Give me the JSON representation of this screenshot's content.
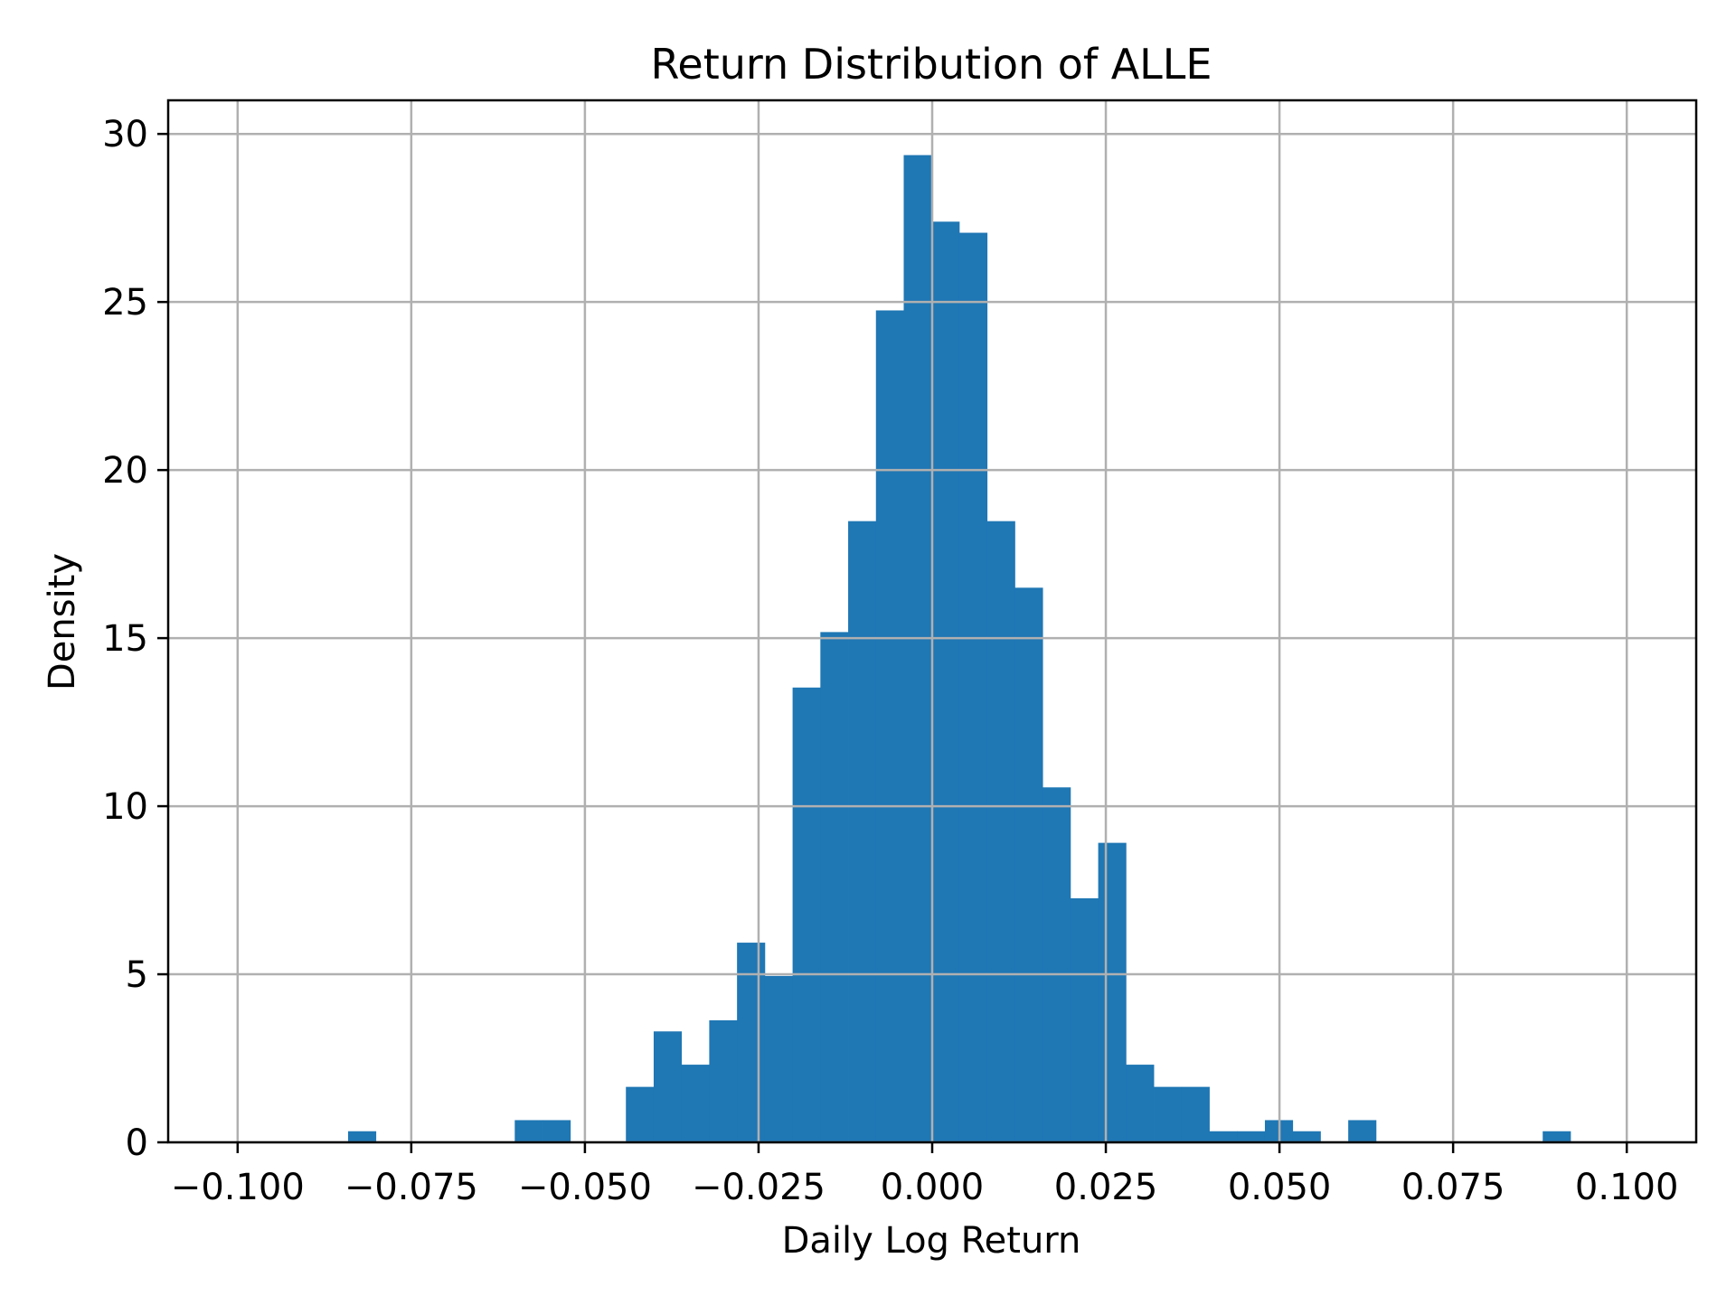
{
  "chart_data": {
    "type": "bar",
    "subtype": "histogram",
    "title": "Return Distribution of ALLE",
    "xlabel": "Daily Log Return",
    "ylabel": "Density",
    "xlim": [
      -0.11,
      0.11
    ],
    "ylim": [
      0,
      31
    ],
    "grid": true,
    "legend": null,
    "bar_color": "#1f77b4",
    "grid_color": "#b0b0b0",
    "x_ticks": [
      -0.1,
      -0.075,
      -0.05,
      -0.025,
      0.0,
      0.025,
      0.05,
      0.075,
      0.1
    ],
    "x_tick_labels": [
      "−0.100",
      "−0.075",
      "−0.050",
      "−0.025",
      "0.000",
      "0.025",
      "0.050",
      "0.075",
      "0.100"
    ],
    "y_ticks": [
      0,
      5,
      10,
      15,
      20,
      25,
      30
    ],
    "y_tick_labels": [
      "0",
      "5",
      "10",
      "15",
      "20",
      "25",
      "30"
    ],
    "bin_start": -0.0841,
    "bin_width": 0.004,
    "values": [
      0.33,
      0,
      0,
      0,
      0,
      0,
      0.66,
      0.66,
      0,
      0,
      1.65,
      3.3,
      2.31,
      3.63,
      5.94,
      4.95,
      13.53,
      15.18,
      18.48,
      24.75,
      29.37,
      27.39,
      27.06,
      18.48,
      16.5,
      10.56,
      7.26,
      8.91,
      2.31,
      1.65,
      1.65,
      0.33,
      0.33,
      0.66,
      0.33,
      0,
      0.66,
      0,
      0,
      0,
      0,
      0,
      0,
      0.33
    ]
  }
}
